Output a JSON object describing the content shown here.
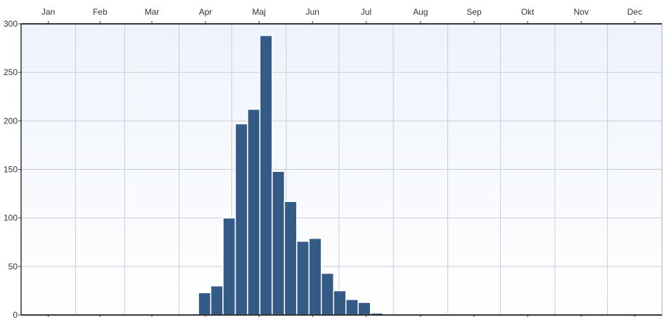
{
  "colors": {
    "bar_fill": "#335b85",
    "bar_stroke": "#ffffff",
    "grid": "#c8ccd6",
    "axis": "#333333",
    "background_top": "#eef3fc",
    "background_bottom": "#ffffff"
  },
  "chart_data": {
    "type": "bar",
    "title": "",
    "xlabel": "",
    "ylabel": "",
    "ylim": [
      0,
      300
    ],
    "y_ticks": [
      0,
      50,
      100,
      150,
      200,
      250,
      300
    ],
    "grid": true,
    "x_month_labels": [
      "Jan",
      "Feb",
      "Mar",
      "Apr",
      "Maj",
      "Jun",
      "Jul",
      "Aug",
      "Sep",
      "Okt",
      "Nov",
      "Dec"
    ],
    "bin_unit": "week",
    "weeks": [
      16,
      17,
      18,
      19,
      20,
      21,
      22,
      23,
      24,
      25,
      26,
      27,
      28,
      29,
      30,
      31,
      32,
      33,
      34,
      35,
      36,
      37,
      38
    ],
    "values": [
      23,
      30,
      100,
      197,
      212,
      288,
      148,
      117,
      76,
      79,
      43,
      25,
      16,
      13,
      2,
      0,
      1,
      1,
      1,
      0,
      1,
      1,
      1
    ]
  }
}
